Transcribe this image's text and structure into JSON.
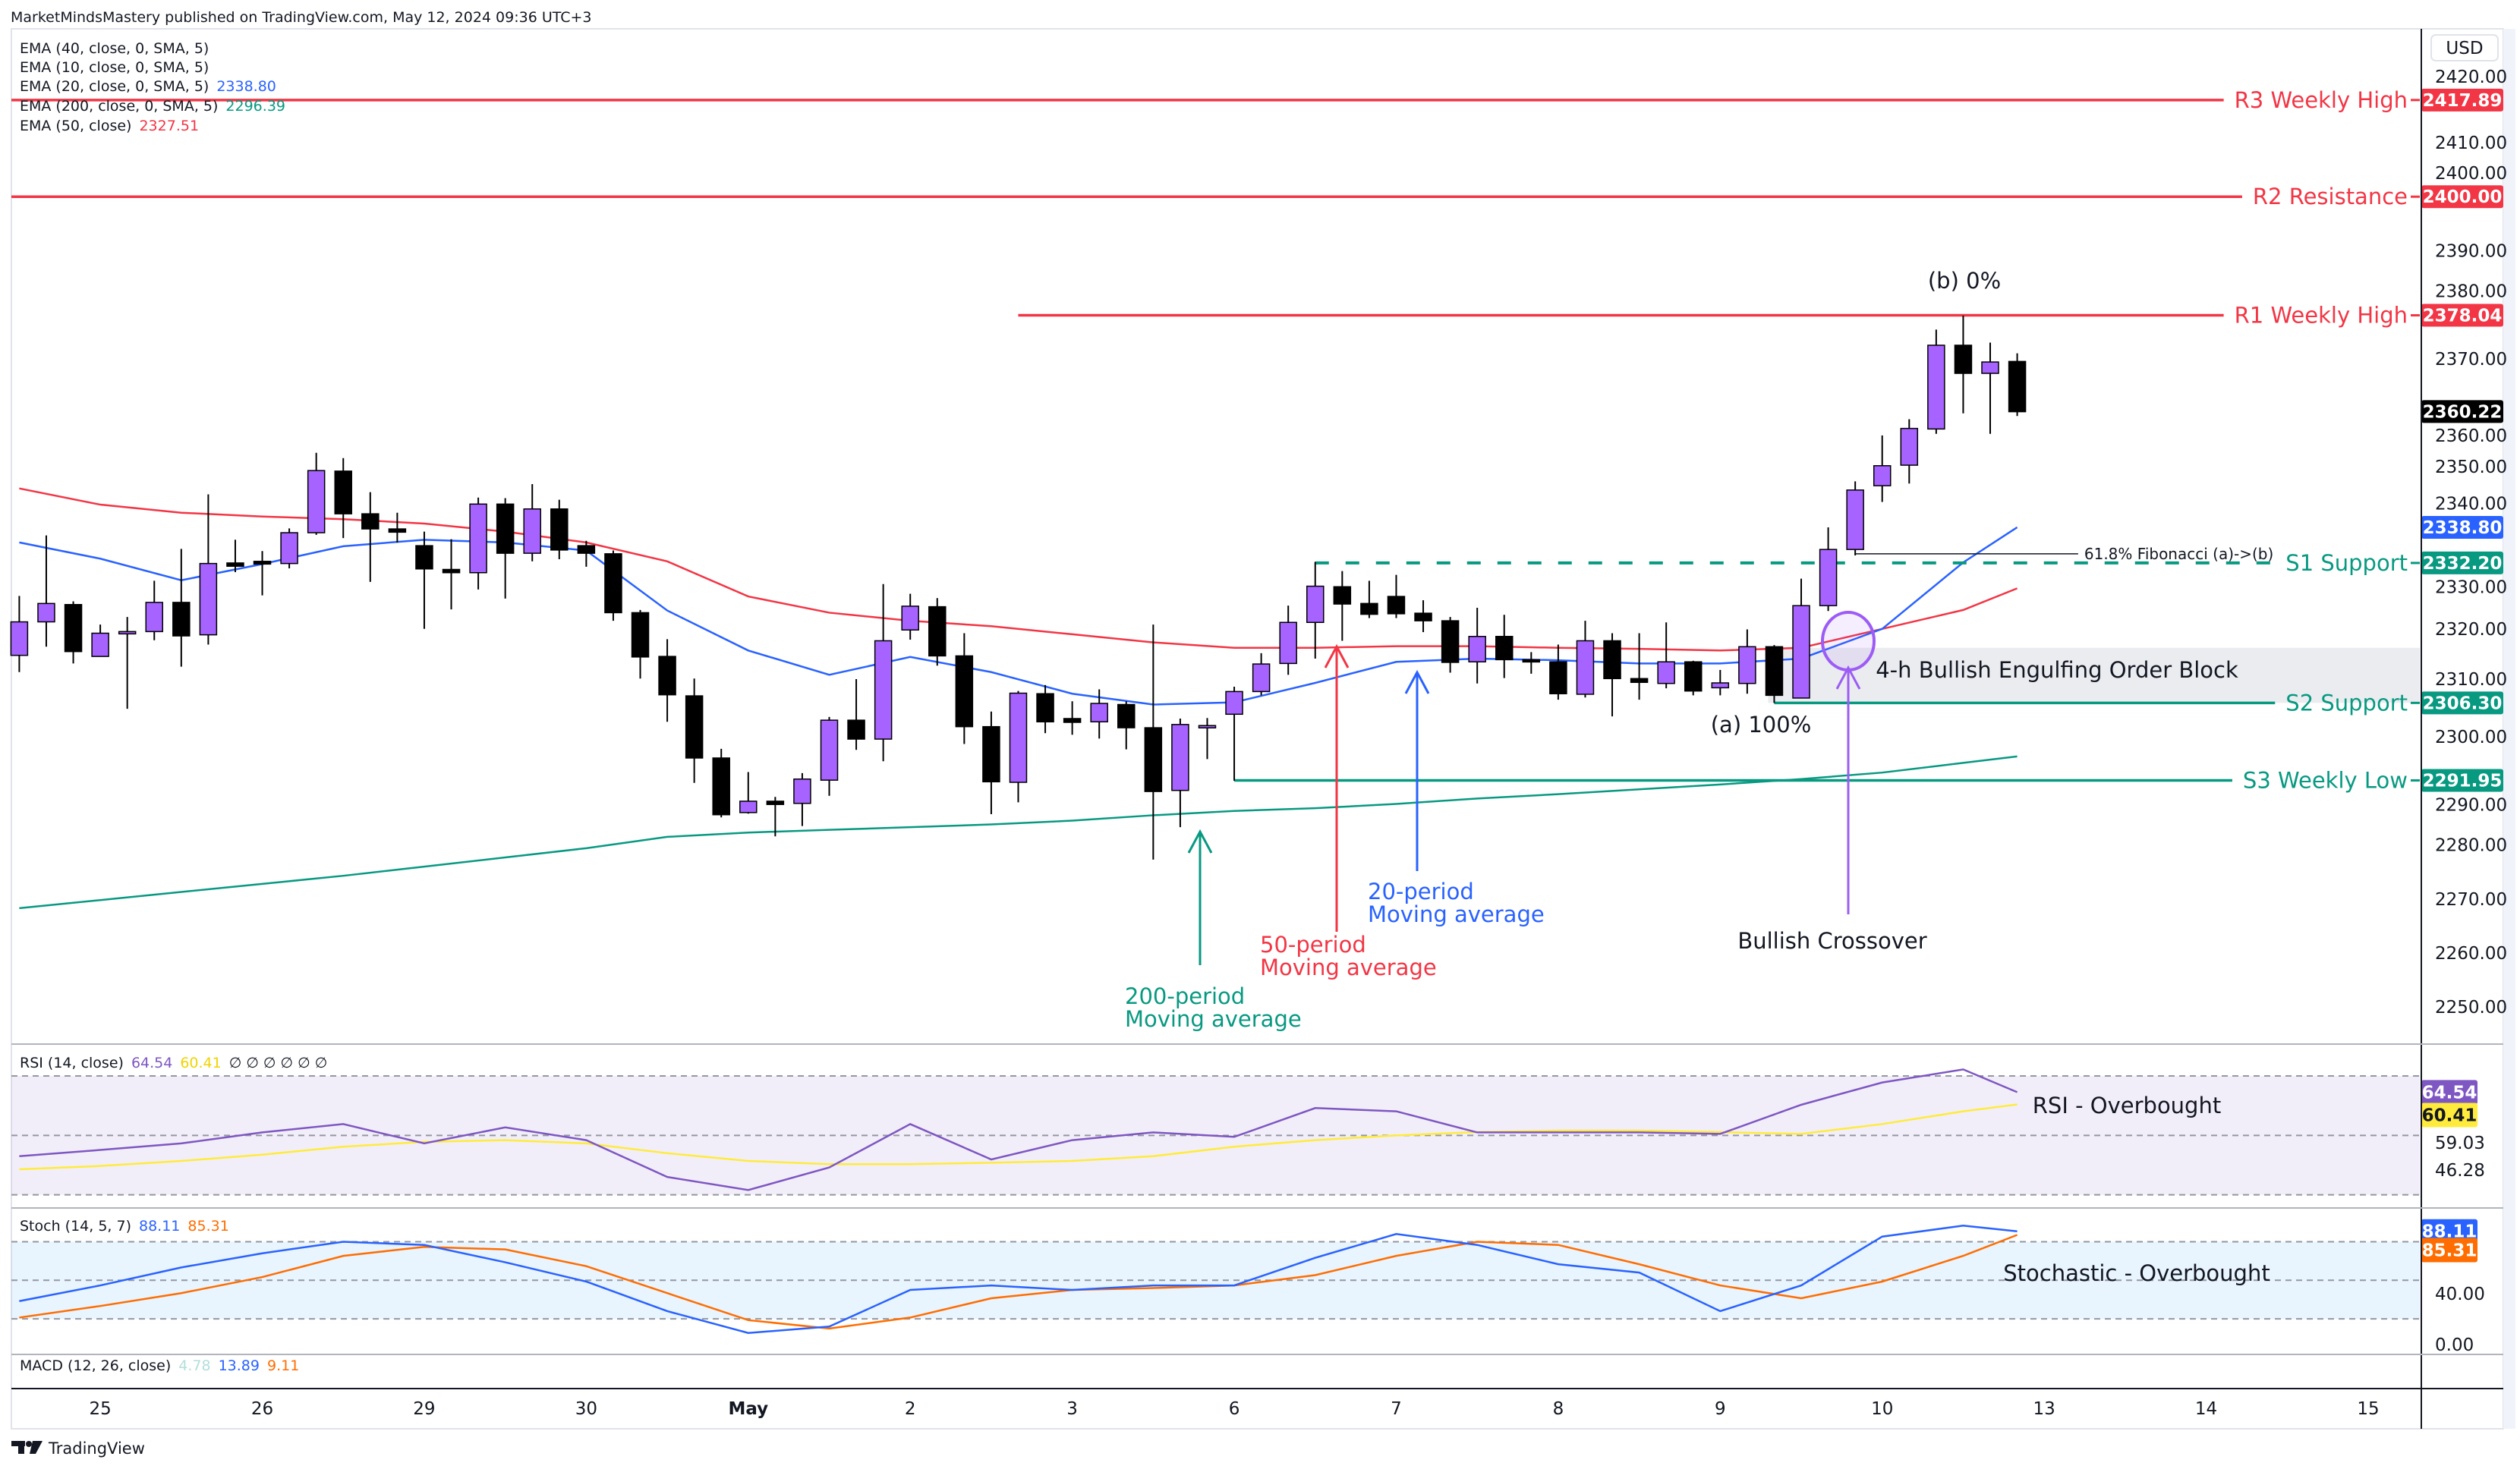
{
  "header": {
    "published": "MarketMindsMastery published on TradingView.com, May 12, 2024 09:36 UTC+3"
  },
  "legend": {
    "items": [
      {
        "label": "EMA (40, close, 0, SMA, 5)",
        "value": ""
      },
      {
        "label": "EMA (10, close, 0, SMA, 5)",
        "value": ""
      },
      {
        "label": "EMA (20, close, 0, SMA, 5)",
        "value": "2338.80",
        "color": "#2962ff"
      },
      {
        "label": "EMA (200, close, 0, SMA, 5)",
        "value": "2296.39",
        "color": "#089981"
      },
      {
        "label": "EMA (50, close)",
        "value": "2327.51",
        "color": "#f23645"
      }
    ]
  },
  "currency": "USD",
  "colors": {
    "bull": "#a663ff",
    "bear": "#000000",
    "resistance": "#f23645",
    "support": "#089981",
    "ema20": "#2962ff",
    "ema50": "#f23645",
    "ema200": "#089981",
    "rsi": "#7e57c2",
    "rsi_ma": "#ffeb3b",
    "stoch_k": "#2962ff",
    "stoch_d": "#ff6d00",
    "annotation_purple": "#9c5cf5"
  },
  "chart_data": {
    "type": "candlestick",
    "timeframe_note": "",
    "ylim": [
      2243,
      2428
    ],
    "price_ticks": [
      "2420.00",
      "2410.00",
      "2400.00",
      "2390.00",
      "2380.00",
      "2370.00",
      "2360.00",
      "2350.00",
      "2340.00",
      "2330.00",
      "2320.00",
      "2310.00",
      "2300.00",
      "2290.00",
      "2280.00",
      "2270.00",
      "2260.00",
      "2250.00"
    ],
    "date_labels": [
      "25",
      "26",
      "29",
      "30",
      "May",
      "2",
      "3",
      "6",
      "7",
      "8",
      "9",
      "10",
      "13",
      "14",
      "15"
    ],
    "candles": [
      [
        "Apr 24 12:00",
        2315.1,
        2326.1,
        2312.0,
        2321.3
      ],
      [
        "Apr 24 16:00",
        2321.3,
        2337.3,
        2316.7,
        2324.7
      ],
      [
        "Apr 24 20:00",
        2324.5,
        2325.1,
        2313.6,
        2315.8
      ],
      [
        "Apr 25 00:00",
        2314.9,
        2320.8,
        2314.9,
        2319.2
      ],
      [
        "Apr 25 04:00",
        2319.2,
        2322.2,
        2305.2,
        2319.5
      ],
      [
        "Apr 25 08:00",
        2319.5,
        2328.9,
        2317.9,
        2324.9
      ],
      [
        "Apr 25 12:00",
        2324.9,
        2334.8,
        2313.0,
        2318.7
      ],
      [
        "Apr 25 16:00",
        2318.9,
        2344.9,
        2317.1,
        2332.1
      ],
      [
        "Apr 25 20:00",
        2332.2,
        2336.5,
        2330.5,
        2331.6
      ],
      [
        "Apr 26 00:00",
        2332.5,
        2334.4,
        2326.2,
        2332.0
      ],
      [
        "Apr 26 04:00",
        2332.1,
        2338.6,
        2331.2,
        2337.8
      ],
      [
        "Apr 26 08:00",
        2337.8,
        2352.6,
        2337.4,
        2349.3
      ],
      [
        "Apr 26 12:00",
        2349.2,
        2351.6,
        2336.8,
        2341.3
      ],
      [
        "Apr 26 16:00",
        2341.3,
        2345.3,
        2328.7,
        2338.5
      ],
      [
        "Apr 26 20:00",
        2338.5,
        2341.5,
        2336.0,
        2337.9
      ],
      [
        "Apr 29 00:00",
        2335.4,
        2338.0,
        2320.0,
        2331.1
      ],
      [
        "Apr 29 04:00",
        2331.0,
        2336.6,
        2323.6,
        2330.4
      ],
      [
        "Apr 29 08:00",
        2330.4,
        2344.3,
        2327.3,
        2343.1
      ],
      [
        "Apr 29 12:00",
        2343.1,
        2344.2,
        2325.6,
        2334.0
      ],
      [
        "Apr 29 16:00",
        2334.0,
        2346.8,
        2332.5,
        2342.2
      ],
      [
        "Apr 29 20:00",
        2342.2,
        2343.9,
        2332.9,
        2334.6
      ],
      [
        "Apr 30 00:00",
        2335.4,
        2336.3,
        2331.5,
        2334.0
      ],
      [
        "Apr 30 04:00",
        2333.9,
        2334.5,
        2321.5,
        2323.0
      ],
      [
        "Apr 30 08:00",
        2323.0,
        2323.5,
        2310.8,
        2314.8
      ],
      [
        "Apr 30 12:00",
        2314.9,
        2318.1,
        2302.8,
        2307.8
      ],
      [
        "Apr 30 16:00",
        2307.6,
        2310.8,
        2291.5,
        2296.1
      ],
      [
        "Apr 30 20:00",
        2296.1,
        2297.8,
        2285.1,
        2285.6
      ],
      [
        "May 1 00:00",
        2286.0,
        2293.5,
        2285.8,
        2288.1
      ],
      [
        "May 1 04:00",
        2288.1,
        2288.9,
        2281.6,
        2287.5
      ],
      [
        "May 1 08:00",
        2287.7,
        2293.3,
        2283.5,
        2292.2
      ],
      [
        "May 1 12:00",
        2292.0,
        2303.7,
        2289.1,
        2303.1
      ],
      [
        "May 1 16:00",
        2303.1,
        2310.7,
        2297.6,
        2299.6
      ],
      [
        "May 1 20:00",
        2299.6,
        2328.3,
        2295.5,
        2317.8
      ],
      [
        "May 2 00:00",
        2319.8,
        2326.5,
        2318.0,
        2324.2
      ],
      [
        "May 2 04:00",
        2324.1,
        2325.7,
        2313.2,
        2315.0
      ],
      [
        "May 2 08:00",
        2315.0,
        2319.2,
        2298.7,
        2301.9
      ],
      [
        "May 2 12:00",
        2301.9,
        2304.7,
        2285.7,
        2291.7
      ],
      [
        "May 2 16:00",
        2291.6,
        2308.5,
        2287.9,
        2308.1
      ],
      [
        "May 2 20:00",
        2308.0,
        2309.6,
        2300.7,
        2302.8
      ],
      [
        "May 3 00:00",
        2303.4,
        2306.6,
        2300.4,
        2302.7
      ],
      [
        "May 3 04:00",
        2302.8,
        2308.8,
        2299.7,
        2306.2
      ],
      [
        "May 3 08:00",
        2306.0,
        2306.6,
        2297.7,
        2301.7
      ],
      [
        "May 3 12:00",
        2301.7,
        2320.8,
        2277.3,
        2289.9
      ],
      [
        "May 3 16:00",
        2290.1,
        2303.4,
        2283.3,
        2302.3
      ],
      [
        "May 3 20:00",
        2302.1,
        2303.5,
        2295.9,
        2302.1
      ],
      [
        "May 6 00:00",
        2304.2,
        2309.3,
        2291.9,
        2308.4
      ],
      [
        "May 6 04:00",
        2308.4,
        2315.5,
        2307.7,
        2313.5
      ],
      [
        "May 6 08:00",
        2313.6,
        2324.3,
        2311.5,
        2321.2
      ],
      [
        "May 6 12:00",
        2321.2,
        2332.4,
        2314.5,
        2327.9
      ],
      [
        "May 6 16:00",
        2327.8,
        2330.7,
        2317.8,
        2324.6
      ],
      [
        "May 6 20:00",
        2324.7,
        2328.9,
        2322.0,
        2322.7
      ],
      [
        "May 7 00:00",
        2326.0,
        2330.0,
        2322.0,
        2322.8
      ],
      [
        "May 7 04:00",
        2322.9,
        2325.3,
        2319.4,
        2321.5
      ],
      [
        "May 7 08:00",
        2321.5,
        2322.2,
        2311.9,
        2313.8
      ],
      [
        "May 7 12:00",
        2313.9,
        2323.9,
        2309.9,
        2318.6
      ],
      [
        "May 7 16:00",
        2318.6,
        2322.6,
        2310.9,
        2314.3
      ],
      [
        "May 7 20:00",
        2314.3,
        2315.7,
        2311.7,
        2314.0
      ],
      [
        "May 8 00:00",
        2313.9,
        2317.1,
        2306.9,
        2308.0
      ],
      [
        "May 8 04:00",
        2307.9,
        2321.5,
        2307.3,
        2317.8
      ],
      [
        "May 8 08:00",
        2317.8,
        2319.2,
        2303.8,
        2310.8
      ],
      [
        "May 8 12:00",
        2310.8,
        2319.2,
        2306.9,
        2310.1
      ],
      [
        "May 8 16:00",
        2309.9,
        2321.2,
        2309.0,
        2313.9
      ],
      [
        "May 8 20:00",
        2313.9,
        2314.1,
        2307.7,
        2308.5
      ],
      [
        "May 9 00:00",
        2309.1,
        2312.4,
        2307.7,
        2310.0
      ],
      [
        "May 9 04:00",
        2309.9,
        2319.9,
        2308.0,
        2316.7
      ],
      [
        "May 9 08:00",
        2316.7,
        2317.0,
        2306.3,
        2307.7
      ],
      [
        "May 9 12:00",
        2307.2,
        2329.3,
        2307.2,
        2324.3
      ],
      [
        "May 9 16:00",
        2324.3,
        2338.8,
        2323.3,
        2334.7
      ],
      [
        "May 9 20:00",
        2334.7,
        2347.3,
        2333.6,
        2345.7
      ],
      [
        "May 10 00:00",
        2346.5,
        2355.8,
        2343.5,
        2350.2
      ],
      [
        "May 10 04:00",
        2350.3,
        2358.8,
        2346.9,
        2357.1
      ],
      [
        "May 10 08:00",
        2357.0,
        2375.4,
        2356.1,
        2372.5
      ],
      [
        "May 10 12:00",
        2372.5,
        2378.0,
        2359.9,
        2367.3
      ],
      [
        "May 10 16:00",
        2367.3,
        2373.0,
        2356.1,
        2369.4
      ],
      [
        "May 10 20:00",
        2369.5,
        2371.0,
        2359.4,
        2360.2
      ]
    ],
    "indicator_times": [
      "Apr 24 12:00",
      "Apr 25 00:00",
      "Apr 25 12:00",
      "Apr 26 00:00",
      "Apr 26 12:00",
      "Apr 29 00:00",
      "Apr 29 12:00",
      "Apr 30 00:00",
      "Apr 30 12:00",
      "May 1 00:00",
      "May 1 12:00",
      "May 2 00:00",
      "May 2 12:00",
      "May 3 00:00",
      "May 3 12:00",
      "May 6 00:00",
      "May 6 12:00",
      "May 7 00:00",
      "May 7 12:00",
      "May 8 00:00",
      "May 8 12:00",
      "May 9 00:00",
      "May 9 12:00",
      "May 10 00:00",
      "May 10 12:00",
      "May 10 20:00"
    ],
    "ema20": [
      2336,
      2333,
      2329,
      2332,
      2335.3,
      2336.5,
      2336,
      2334.5,
      2323.4,
      2316,
      2311.5,
      2314.8,
      2312,
      2308,
      2306,
      2306.4,
      2310,
      2313.9,
      2314.5,
      2314.2,
      2313.6,
      2313.6,
      2314.5,
      2320,
      2332.3,
      2338.8
    ],
    "ema50": [
      2346,
      2343,
      2341.5,
      2340.8,
      2340.3,
      2339.5,
      2338,
      2336,
      2332.5,
      2326,
      2323,
      2321.5,
      2320.5,
      2319,
      2317.5,
      2316.5,
      2316.5,
      2316.8,
      2316.8,
      2316.5,
      2316.3,
      2316,
      2316.5,
      2320,
      2323.5,
      2327.5
    ],
    "ema200": [
      2268.3,
      2269.8,
      2271.3,
      2272.8,
      2274.3,
      2276,
      2277.7,
      2279.4,
      2281.5,
      2282.3,
      2282.8,
      2283.3,
      2283.8,
      2284.5,
      2285.5,
      2286.3,
      2286.8,
      2287.6,
      2288.6,
      2289.4,
      2290.3,
      2291.2,
      2292.2,
      2293.4,
      2295.2,
      2296.4
    ],
    "levels": [
      {
        "label": "R3 Weekly High",
        "price": 2417.89,
        "badge": "2417.89",
        "kind": "resistance",
        "style": "solid",
        "start": "Apr 24 12:00"
      },
      {
        "label": "R2 Resistance",
        "price": 2400.0,
        "badge": "2400.00",
        "kind": "resistance",
        "style": "solid",
        "start": "Apr 24 12:00"
      },
      {
        "label": "R1 Weekly High",
        "price": 2378.04,
        "badge": "2378.04",
        "kind": "resistance",
        "style": "solid",
        "start": "May 2 16:00"
      },
      {
        "label": "S1 Support",
        "price": 2332.2,
        "badge": "2332.20",
        "kind": "support",
        "style": "dashed",
        "start": "May 6 12:00"
      },
      {
        "label": "S2 Support",
        "price": 2306.3,
        "badge": "2306.30",
        "kind": "support",
        "style": "solid",
        "start": "May 9 08:00"
      },
      {
        "label": "S3 Weekly Low",
        "price": 2291.95,
        "badge": "2291.95",
        "kind": "support",
        "style": "solid",
        "start": "May 6 00:00"
      }
    ],
    "last_price": {
      "price": 2360.22,
      "badge": "2360.22"
    },
    "ema20_badge": {
      "price": 2338.8,
      "badge": "2338.80"
    },
    "order_block": {
      "label": "4-h Bullish Engulfing Order Block",
      "top": 2316.5,
      "bottom": 2306.3,
      "start": "May 9 08:00"
    },
    "fibonacci": {
      "label": "61.8% Fibonacci (a)->(b)",
      "price": 2333.9,
      "start": "May 9 20:00",
      "a_label": "(a) 100%",
      "b_label": "(b) 0%"
    },
    "annotations": {
      "ma200": [
        "200-period",
        "Moving average"
      ],
      "ma50": [
        "50-period",
        "Moving average"
      ],
      "ma20": [
        "20-period",
        "Moving average"
      ],
      "crossover": "Bullish Crossover"
    },
    "rsi": {
      "legend": "RSI (14, close)",
      "value": "64.54",
      "ma_value": "60.41",
      "extra": "∅ ∅ ∅ ∅ ∅ ∅",
      "axis_labels": [
        "59.03",
        "46.28"
      ],
      "band": [
        30,
        70
      ],
      "mid": 50,
      "values": [
        43,
        45.1,
        47.3,
        51,
        53.8,
        47.3,
        52.7,
        48.4,
        36,
        31.6,
        39.2,
        53.8,
        41.9,
        48.4,
        51,
        49.5,
        59.2,
        58.1,
        51,
        51,
        51,
        50.5,
        60.3,
        67.8,
        72.2,
        64.54
      ],
      "ma": [
        38.6,
        39.7,
        41.4,
        43.5,
        46.2,
        47.8,
        48.4,
        47.3,
        44,
        41.4,
        40.3,
        40.3,
        40.8,
        41.4,
        43,
        46.2,
        48.4,
        50,
        51.1,
        51.6,
        51.6,
        51.1,
        50.5,
        53.8,
        58.1,
        60.41
      ],
      "note": "RSI - Overbought"
    },
    "stoch": {
      "legend": "Stoch (14, 5, 7)",
      "k_value": "88.11",
      "d_value": "85.31",
      "axis_labels": [
        "40.00",
        "0.00"
      ],
      "band": [
        20,
        80
      ],
      "mid": 50,
      "k": [
        33.8,
        46,
        60,
        71,
        80,
        77.5,
        64,
        49,
        26,
        9,
        14,
        42.5,
        46,
        42.5,
        46,
        46,
        67.5,
        86,
        77.5,
        62.5,
        56,
        26,
        46,
        84,
        92.5,
        88.11
      ],
      "d": [
        21,
        30,
        40,
        52.5,
        69,
        76,
        74,
        61,
        40,
        19,
        12.5,
        21,
        36,
        42.5,
        44,
        46,
        54,
        69,
        80,
        77.5,
        62.5,
        46,
        36,
        49,
        69,
        85.31
      ],
      "note": "Stochastic - Overbought"
    },
    "macd": {
      "legend": "MACD (12, 26, close)",
      "hist": "4.78",
      "macd": "13.89",
      "signal": "9.11",
      "hist_color": "#b2dfdb",
      "macd_color": "#2962ff",
      "signal_color": "#ff6d00"
    }
  },
  "footer": {
    "brand": "TradingView"
  }
}
